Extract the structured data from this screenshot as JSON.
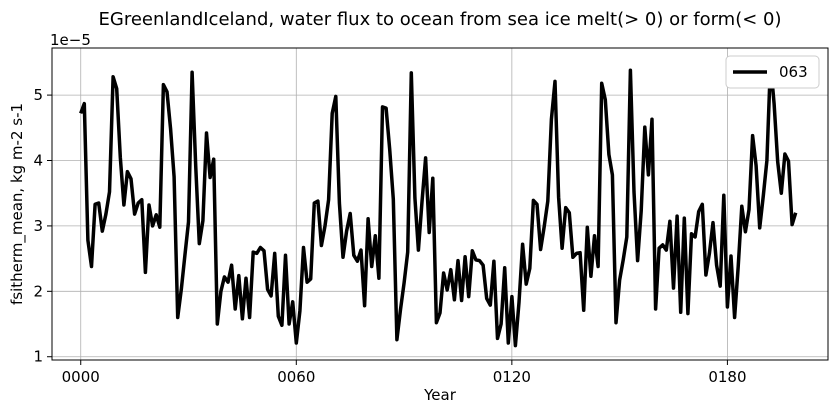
{
  "chart_data": {
    "type": "line",
    "title": "EGreenlandIceland, water flux to ocean from sea ice melt(> 0) or form(< 0)",
    "xlabel": "Year",
    "ylabel": "fsitherm_mean, kg m-2 s-1",
    "y_offset_label": "1e−5",
    "xlim": [
      -8,
      208
    ],
    "ylim": [
      0.95,
      5.72
    ],
    "x_ticks": [
      0,
      60,
      120,
      180
    ],
    "x_tick_labels": [
      "0000",
      "0060",
      "0120",
      "0180"
    ],
    "y_ticks": [
      1,
      2,
      3,
      4,
      5
    ],
    "y_tick_labels": [
      "1",
      "2",
      "3",
      "4",
      "5"
    ],
    "grid": true,
    "legend_position": "top-right",
    "series": [
      {
        "name": "063",
        "color": "#000000",
        "x_start": 0,
        "x_step": 1,
        "values": [
          4.72,
          4.87,
          2.78,
          2.38,
          3.33,
          3.35,
          2.92,
          3.18,
          3.52,
          5.28,
          5.1,
          4.05,
          3.32,
          3.83,
          3.72,
          3.18,
          3.35,
          3.4,
          2.29,
          3.32,
          3.0,
          3.17,
          2.98,
          5.16,
          5.05,
          4.48,
          3.75,
          1.6,
          2.03,
          2.55,
          3.06,
          5.35,
          3.92,
          2.73,
          3.08,
          4.42,
          3.74,
          4.02,
          1.5,
          2.0,
          2.22,
          2.14,
          2.4,
          1.73,
          2.24,
          1.58,
          2.2,
          1.6,
          2.6,
          2.58,
          2.67,
          2.62,
          2.03,
          1.93,
          2.58,
          1.62,
          1.48,
          2.55,
          1.5,
          1.84,
          1.21,
          1.7,
          2.67,
          2.14,
          2.19,
          3.35,
          3.38,
          2.7,
          3.0,
          3.4,
          4.72,
          4.98,
          3.35,
          2.52,
          2.92,
          3.19,
          2.55,
          2.46,
          2.63,
          1.78,
          3.11,
          2.38,
          2.85,
          2.2,
          4.82,
          4.8,
          4.17,
          3.41,
          1.26,
          1.72,
          2.13,
          2.6,
          5.34,
          3.43,
          2.63,
          3.37,
          4.04,
          2.9,
          3.73,
          1.52,
          1.67,
          2.28,
          2.02,
          2.33,
          1.87,
          2.47,
          1.86,
          2.53,
          1.92,
          2.62,
          2.48,
          2.47,
          2.4,
          1.89,
          1.79,
          2.46,
          1.28,
          1.5,
          2.36,
          1.21,
          1.92,
          1.17,
          1.83,
          2.72,
          2.11,
          2.35,
          3.39,
          3.33,
          2.64,
          2.99,
          3.38,
          4.63,
          5.21,
          3.44,
          2.66,
          3.28,
          3.2,
          2.52,
          2.58,
          2.59,
          1.71,
          2.98,
          2.23,
          2.85,
          2.38,
          5.18,
          4.93,
          4.09,
          3.78,
          1.52,
          2.17,
          2.48,
          2.83,
          5.38,
          3.52,
          2.47,
          3.23,
          4.51,
          3.78,
          4.63,
          1.73,
          2.66,
          2.71,
          2.63,
          3.07,
          2.05,
          3.15,
          1.68,
          3.12,
          1.66,
          2.88,
          2.83,
          3.22,
          3.33,
          2.25,
          2.58,
          3.05,
          2.4,
          2.08,
          3.47,
          1.76,
          2.54,
          1.6,
          2.38,
          3.3,
          2.91,
          3.25,
          4.38,
          3.92,
          2.97,
          3.46,
          4.0,
          5.5,
          4.87,
          3.98,
          3.5,
          4.1,
          3.99,
          3.02,
          3.2
        ]
      }
    ]
  }
}
